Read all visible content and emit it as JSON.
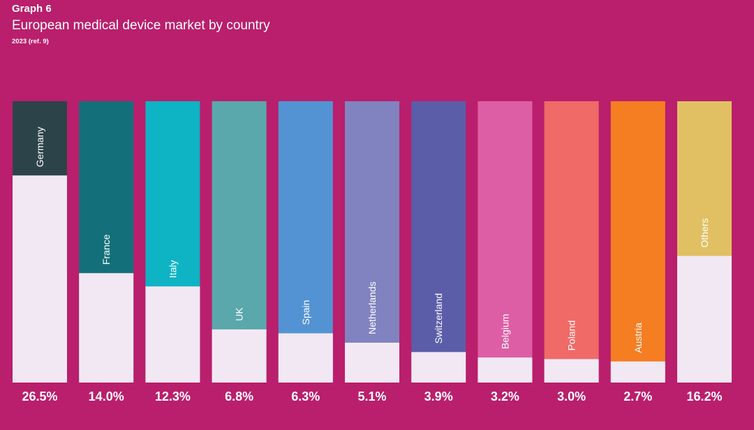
{
  "header": {
    "label": "Graph 6",
    "title": "European medical device market by country",
    "subtitle": "2023 (ref. 9)"
  },
  "chart_data": {
    "type": "bar",
    "title": "European medical device market by country",
    "subtitle": "2023 (ref. 9)",
    "unit": "%",
    "categories": [
      "Germany",
      "France",
      "Italy",
      "UK",
      "Spain",
      "Netherlands",
      "Switzerland",
      "Belgium",
      "Poland",
      "Austria",
      "Others"
    ],
    "values": [
      26.5,
      14.0,
      12.3,
      6.8,
      6.3,
      5.1,
      3.9,
      3.2,
      3.0,
      2.7,
      16.2
    ],
    "value_labels": [
      "26.5%",
      "14.0%",
      "12.3%",
      "6.8%",
      "6.3%",
      "5.1%",
      "3.9%",
      "3.2%",
      "3.0%",
      "2.7%",
      "16.2%"
    ],
    "colors": [
      "#2d434a",
      "#13707a",
      "#0eb3c4",
      "#5aa8ac",
      "#5393d3",
      "#8083bf",
      "#5b5da9",
      "#de5ea5",
      "#f06a67",
      "#f57d22",
      "#e1c063"
    ],
    "base_color": "#f2e8f4",
    "background_color": "#b91f6c",
    "ylim": [
      0,
      36
    ],
    "grid": false,
    "legend": "none"
  }
}
